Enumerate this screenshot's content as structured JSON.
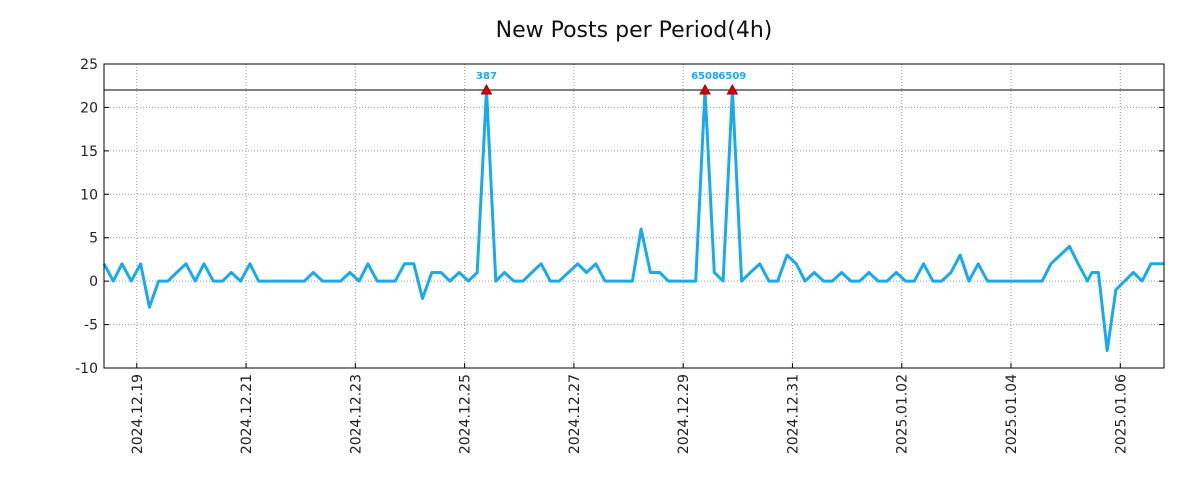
{
  "chart_data": {
    "type": "line",
    "title": "New Posts per Period(4h)",
    "xlabel": "",
    "ylabel": "",
    "ylim": [
      -10,
      25
    ],
    "xlim": [
      -0.6,
      18.8
    ],
    "grid": true,
    "y_ticks": [
      25,
      20,
      15,
      10,
      5,
      0,
      -5,
      -10
    ],
    "y_tick_labels": [
      "25",
      "20",
      "15",
      "10",
      "5",
      "0",
      "-5",
      "-10"
    ],
    "x_ticks": [
      0,
      2,
      4,
      6,
      8,
      10,
      12,
      14,
      16,
      18
    ],
    "x_tick_labels": [
      "2024.12.19",
      "2024.12.21",
      "2024.12.23",
      "2024.12.25",
      "2024.12.27",
      "2024.12.29",
      "2024.12.31",
      "2025.01.02",
      "2025.01.04",
      "2025.01.06"
    ],
    "reference_line": 22,
    "series": [
      {
        "name": "New Posts",
        "color": "#19aaee",
        "points": [
          [
            -0.6,
            2
          ],
          [
            -0.43,
            0
          ],
          [
            -0.27,
            2
          ],
          [
            -0.1,
            0
          ],
          [
            0.07,
            2
          ],
          [
            0.23,
            -3
          ],
          [
            0.4,
            0
          ],
          [
            0.57,
            0
          ],
          [
            0.73,
            1
          ],
          [
            0.9,
            2
          ],
          [
            1.07,
            0
          ],
          [
            1.23,
            2
          ],
          [
            1.4,
            0
          ],
          [
            1.57,
            0
          ],
          [
            1.73,
            1
          ],
          [
            1.9,
            0
          ],
          [
            2.07,
            2
          ],
          [
            2.23,
            0
          ],
          [
            2.4,
            0
          ],
          [
            2.57,
            0
          ],
          [
            2.73,
            0
          ],
          [
            2.9,
            0
          ],
          [
            3.07,
            0
          ],
          [
            3.23,
            1
          ],
          [
            3.4,
            0
          ],
          [
            3.57,
            0
          ],
          [
            3.73,
            0
          ],
          [
            3.9,
            1
          ],
          [
            4.07,
            0
          ],
          [
            4.23,
            2
          ],
          [
            4.4,
            0
          ],
          [
            4.57,
            0
          ],
          [
            4.73,
            0
          ],
          [
            4.9,
            2
          ],
          [
            5.07,
            2
          ],
          [
            5.23,
            -2
          ],
          [
            5.4,
            1
          ],
          [
            5.57,
            1
          ],
          [
            5.73,
            0
          ],
          [
            5.9,
            1
          ],
          [
            6.07,
            0
          ],
          [
            6.23,
            1
          ],
          [
            6.4,
            22
          ],
          [
            6.57,
            0
          ],
          [
            6.73,
            1
          ],
          [
            6.9,
            0
          ],
          [
            7.07,
            0
          ],
          [
            7.23,
            1
          ],
          [
            7.4,
            2
          ],
          [
            7.57,
            0
          ],
          [
            7.73,
            0
          ],
          [
            7.9,
            1
          ],
          [
            8.07,
            2
          ],
          [
            8.23,
            1
          ],
          [
            8.4,
            2
          ],
          [
            8.57,
            0
          ],
          [
            8.73,
            0
          ],
          [
            8.9,
            0
          ],
          [
            9.07,
            0
          ],
          [
            9.23,
            6
          ],
          [
            9.4,
            1
          ],
          [
            9.57,
            1
          ],
          [
            9.73,
            0
          ],
          [
            9.9,
            0
          ],
          [
            10.07,
            0
          ],
          [
            10.23,
            0
          ],
          [
            10.4,
            22
          ],
          [
            10.57,
            1
          ],
          [
            10.73,
            0
          ],
          [
            10.9,
            22
          ],
          [
            11.07,
            0
          ],
          [
            11.23,
            1
          ],
          [
            11.4,
            2
          ],
          [
            11.57,
            0
          ],
          [
            11.73,
            0
          ],
          [
            11.9,
            3
          ],
          [
            12.07,
            2
          ],
          [
            12.23,
            0
          ],
          [
            12.4,
            1
          ],
          [
            12.57,
            0
          ],
          [
            12.73,
            0
          ],
          [
            12.9,
            1
          ],
          [
            13.07,
            0
          ],
          [
            13.23,
            0
          ],
          [
            13.4,
            1
          ],
          [
            13.57,
            0
          ],
          [
            13.73,
            0
          ],
          [
            13.9,
            1
          ],
          [
            14.07,
            0
          ],
          [
            14.23,
            0
          ],
          [
            14.4,
            2
          ],
          [
            14.57,
            0
          ],
          [
            14.73,
            0
          ],
          [
            14.9,
            1
          ],
          [
            15.07,
            3
          ],
          [
            15.23,
            0
          ],
          [
            15.4,
            2
          ],
          [
            15.57,
            0
          ],
          [
            15.73,
            0
          ],
          [
            15.9,
            0
          ],
          [
            16.07,
            0
          ],
          [
            16.23,
            0
          ],
          [
            16.4,
            0
          ],
          [
            16.57,
            0
          ],
          [
            16.73,
            2
          ],
          [
            16.9,
            3
          ],
          [
            17.07,
            4
          ],
          [
            17.23,
            2
          ],
          [
            17.4,
            0
          ],
          [
            17.48,
            1
          ],
          [
            17.6,
            1
          ],
          [
            17.76,
            -8
          ],
          [
            17.92,
            -1
          ],
          [
            18.08,
            0
          ],
          [
            18.24,
            1
          ],
          [
            18.4,
            0
          ],
          [
            18.56,
            2
          ],
          [
            18.8,
            2
          ]
        ]
      }
    ],
    "annotations": [
      {
        "x": 6.4,
        "y": 22,
        "label": "387"
      },
      {
        "x": 10.4,
        "y": 22,
        "label": "6508"
      },
      {
        "x": 10.9,
        "y": 22,
        "label": "6509"
      }
    ],
    "annotation_color": "#19aaee",
    "marker_color": "#dd0000"
  }
}
